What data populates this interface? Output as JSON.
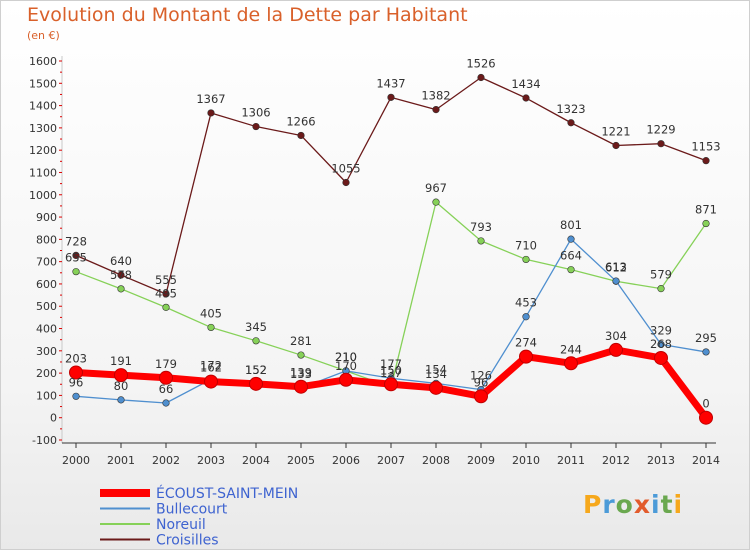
{
  "title": "Evolution du Montant de la Dette par Habitant",
  "subtitle": "(en €)",
  "logo": {
    "letters": [
      "P",
      "r",
      "o",
      "x",
      "i",
      "t",
      "i"
    ],
    "colors": [
      "#f6a81c",
      "#4c9bd8",
      "#6aa84f",
      "#e25b2c",
      "#4c9bd8",
      "#6aa84f",
      "#f6a81c"
    ]
  },
  "chart_data": {
    "type": "line",
    "x": [
      2000,
      2001,
      2002,
      2003,
      2004,
      2005,
      2006,
      2007,
      2008,
      2009,
      2010,
      2011,
      2012,
      2013,
      2014
    ],
    "ylim": [
      -100,
      1600
    ],
    "yticks": [
      -100,
      0,
      100,
      200,
      300,
      400,
      500,
      600,
      700,
      800,
      900,
      1000,
      1100,
      1200,
      1300,
      1400,
      1500,
      1600
    ],
    "grid": false,
    "legend": "bottom-left",
    "series": [
      {
        "name": "ÉCOUST-SAINT-MEIN",
        "color": "#ff0000",
        "values": [
          203,
          191,
          179,
          162,
          152,
          139,
          170,
          150,
          134,
          96,
          274,
          244,
          304,
          268,
          0
        ],
        "labels": [
          "203",
          "191",
          "179",
          "162",
          "152",
          "139",
          "170",
          "150",
          "134",
          "96",
          "274",
          "244",
          "304",
          "268",
          "0"
        ]
      },
      {
        "name": "Bullecourt",
        "color": "#4f8fcf",
        "values": [
          96,
          80,
          66,
          172,
          152,
          133,
          210,
          177,
          154,
          126,
          453,
          801,
          613,
          329,
          295
        ],
        "labels": [
          "96",
          "80",
          "66",
          "172",
          "152",
          "133",
          "210",
          "177",
          "154",
          "126",
          "453",
          "801",
          "613",
          "329",
          "295"
        ]
      },
      {
        "name": "Noreuil",
        "color": "#86d158",
        "values": [
          655,
          578,
          495,
          405,
          345,
          281,
          210,
          137,
          967,
          793,
          710,
          664,
          612,
          579,
          871
        ],
        "labels": [
          "655",
          "578",
          "495",
          "405",
          "345",
          "281",
          "210",
          "137",
          "967",
          "793",
          "710",
          "664",
          "612",
          "579",
          "871"
        ]
      },
      {
        "name": "Croisilles",
        "color": "#6b1a1a",
        "values": [
          728,
          640,
          555,
          1367,
          1306,
          1266,
          1055,
          1437,
          1382,
          1526,
          1434,
          1323,
          1221,
          1229,
          1153
        ],
        "labels": [
          "728",
          "640",
          "555",
          "1367",
          "1306",
          "1266",
          "1055",
          "1437",
          "1382",
          "1526",
          "1434",
          "1323",
          "1221",
          "1229",
          "1153"
        ]
      }
    ]
  }
}
